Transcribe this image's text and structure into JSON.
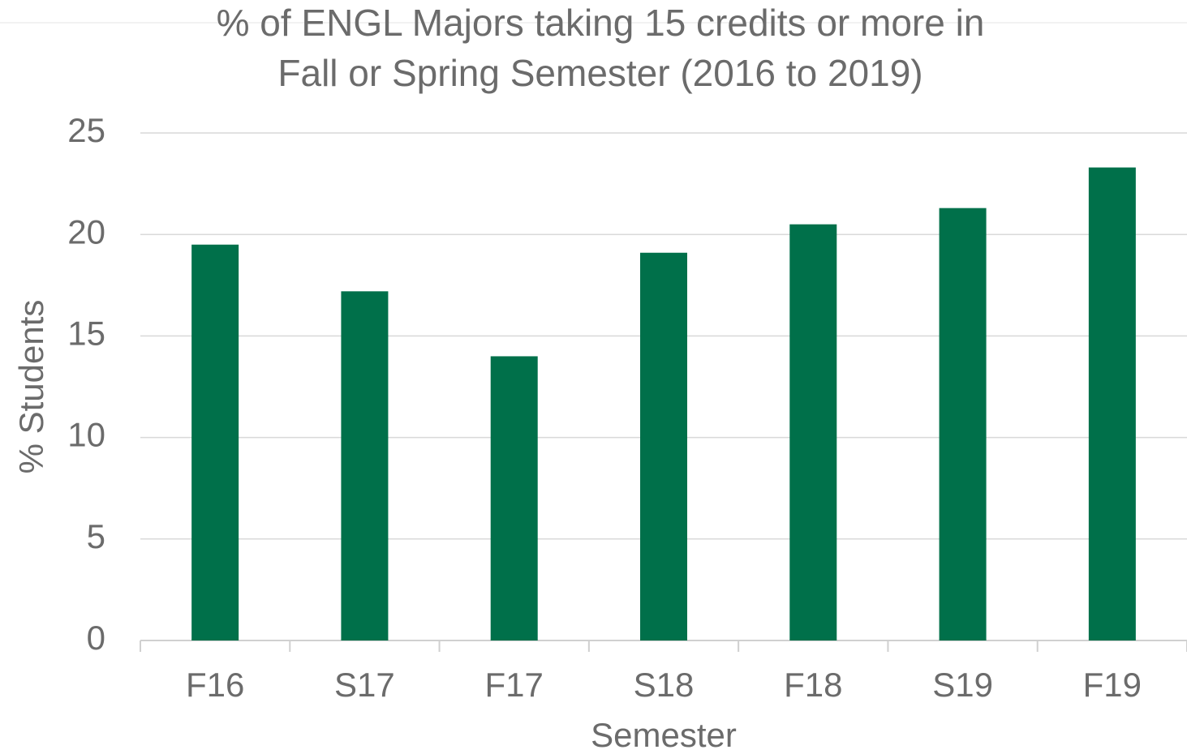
{
  "chart_data": {
    "type": "bar",
    "title": [
      "% of ENGL Majors taking 15 credits or more in",
      "Fall or Spring Semester (2016 to 2019)"
    ],
    "x_label": "Semester",
    "y_label": "% Students",
    "categories": [
      "F16",
      "S17",
      "F17",
      "S18",
      "F18",
      "S19",
      "F19"
    ],
    "values": [
      19.5,
      17.2,
      14.0,
      19.1,
      20.5,
      21.3,
      23.3
    ],
    "color": "#00704a",
    "ylim": [
      0,
      25
    ],
    "yticks": [
      0,
      5,
      10,
      15,
      20,
      25
    ],
    "grid": true
  }
}
